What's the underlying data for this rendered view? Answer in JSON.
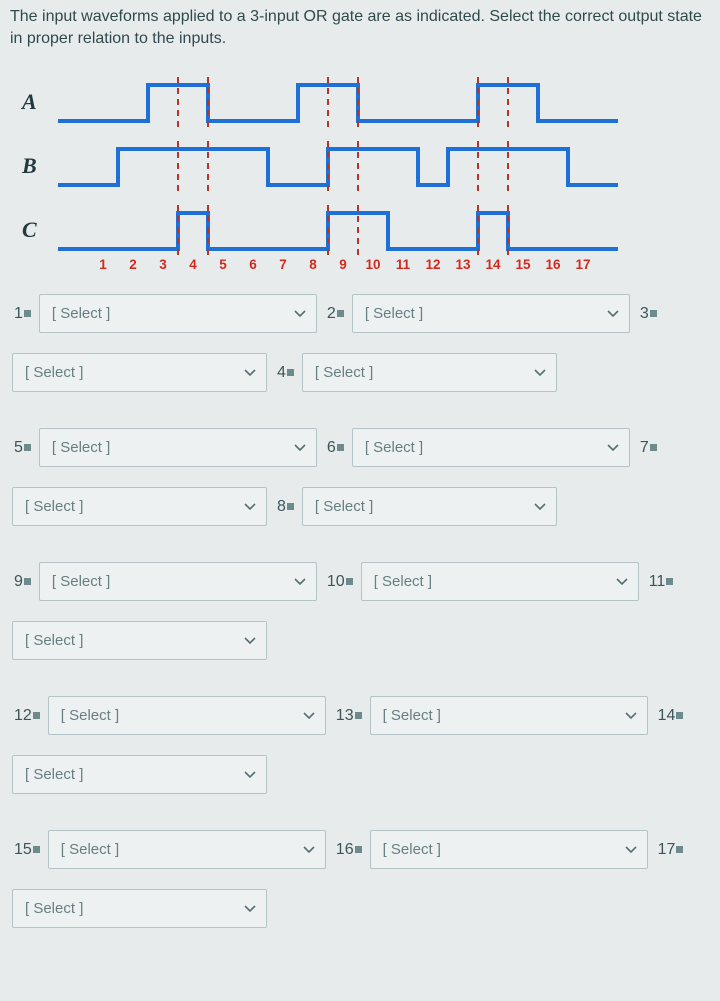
{
  "question": "The input waveforms applied to a 3-input OR gate are as indicated. Select the correct output state in proper relation to the inputs.",
  "signals": {
    "A": {
      "label": "A"
    },
    "B": {
      "label": "B"
    },
    "C": {
      "label": "C"
    }
  },
  "waveform_style": {
    "stroke": "#1e6fd6",
    "stroke_width": 4,
    "guide_stroke": "#b4352a",
    "guide_width": 2,
    "guide_dash": "6,5"
  },
  "axis_ticks": [
    "1",
    "2",
    "3",
    "4",
    "5",
    "6",
    "7",
    "8",
    "9",
    "10",
    "11",
    "12",
    "13",
    "14",
    "15",
    "16",
    "17"
  ],
  "select_placeholder": "[ Select ]",
  "items": [
    {
      "n": "1"
    },
    {
      "n": "2"
    },
    {
      "n": "3"
    },
    {
      "n": "4"
    },
    {
      "n": "5"
    },
    {
      "n": "6"
    },
    {
      "n": "7"
    },
    {
      "n": "8"
    },
    {
      "n": "9"
    },
    {
      "n": "10"
    },
    {
      "n": "11"
    },
    {
      "n": "12"
    },
    {
      "n": "13"
    },
    {
      "n": "14"
    },
    {
      "n": "15"
    },
    {
      "n": "16"
    },
    {
      "n": "17"
    }
  ]
}
